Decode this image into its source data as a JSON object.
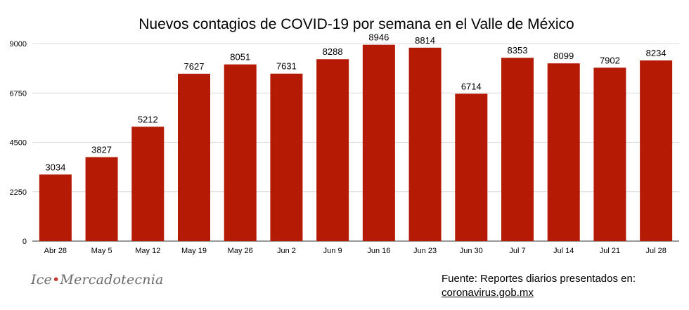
{
  "chart_data": {
    "type": "bar",
    "title": "Nuevos contagios de COVID-19 por semana en el Valle de México",
    "xlabel": "",
    "ylabel": "",
    "categories": [
      "Abr 28",
      "May 5",
      "May 12",
      "May 19",
      "May 26",
      "Jun 2",
      "Jun 9",
      "Jun 16",
      "Jun 23",
      "Jun 30",
      "Jul 7",
      "Jul 14",
      "Jul 21",
      "Jul 28"
    ],
    "values": [
      3034,
      3827,
      5212,
      7627,
      8051,
      7631,
      8288,
      8946,
      8814,
      6714,
      8353,
      8099,
      7902,
      8234
    ],
    "ylim": [
      0,
      9000
    ],
    "yticks": [
      "0",
      "2250",
      "4500",
      "6750",
      "9000"
    ],
    "grid": true,
    "data_labels": true,
    "bar_color": "#b51a05",
    "grid_color": "#d9d9d9"
  },
  "branding": {
    "logo_left": "Ice",
    "logo_dot": "•",
    "logo_right": "Mercadotecnia"
  },
  "source": {
    "line1": "Fuente: Reportes diarios presentados en:",
    "line2": "coronavirus.gob.mx"
  }
}
